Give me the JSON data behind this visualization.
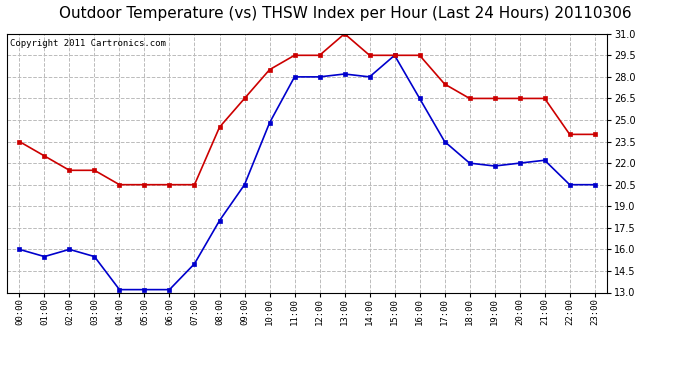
{
  "title": "Outdoor Temperature (vs) THSW Index per Hour (Last 24 Hours) 20110306",
  "copyright": "Copyright 2011 Cartronics.com",
  "hours": [
    "00:00",
    "01:00",
    "02:00",
    "03:00",
    "04:00",
    "05:00",
    "06:00",
    "07:00",
    "08:00",
    "09:00",
    "10:00",
    "11:00",
    "12:00",
    "13:00",
    "14:00",
    "15:00",
    "16:00",
    "17:00",
    "18:00",
    "19:00",
    "20:00",
    "21:00",
    "22:00",
    "23:00"
  ],
  "temp_blue": [
    16.0,
    15.5,
    16.0,
    15.5,
    13.2,
    13.2,
    13.2,
    15.0,
    18.0,
    20.5,
    24.8,
    28.0,
    28.0,
    28.2,
    28.0,
    29.5,
    26.5,
    23.5,
    22.0,
    21.8,
    22.0,
    22.2,
    20.5,
    20.5
  ],
  "thsw_red": [
    23.5,
    22.5,
    21.5,
    21.5,
    20.5,
    20.5,
    20.5,
    20.5,
    24.5,
    26.5,
    28.5,
    29.5,
    29.5,
    31.0,
    29.5,
    29.5,
    29.5,
    27.5,
    26.5,
    26.5,
    26.5,
    26.5,
    24.0,
    24.0
  ],
  "ylim_min": 13.0,
  "ylim_max": 31.0,
  "yticks": [
    13.0,
    14.5,
    16.0,
    17.5,
    19.0,
    20.5,
    22.0,
    23.5,
    25.0,
    26.5,
    28.0,
    29.5,
    31.0
  ],
  "bg_color": "#ffffff",
  "grid_color": "#bbbbbb",
  "blue_color": "#0000cc",
  "red_color": "#cc0000",
  "title_fontsize": 11,
  "copyright_fontsize": 6.5
}
